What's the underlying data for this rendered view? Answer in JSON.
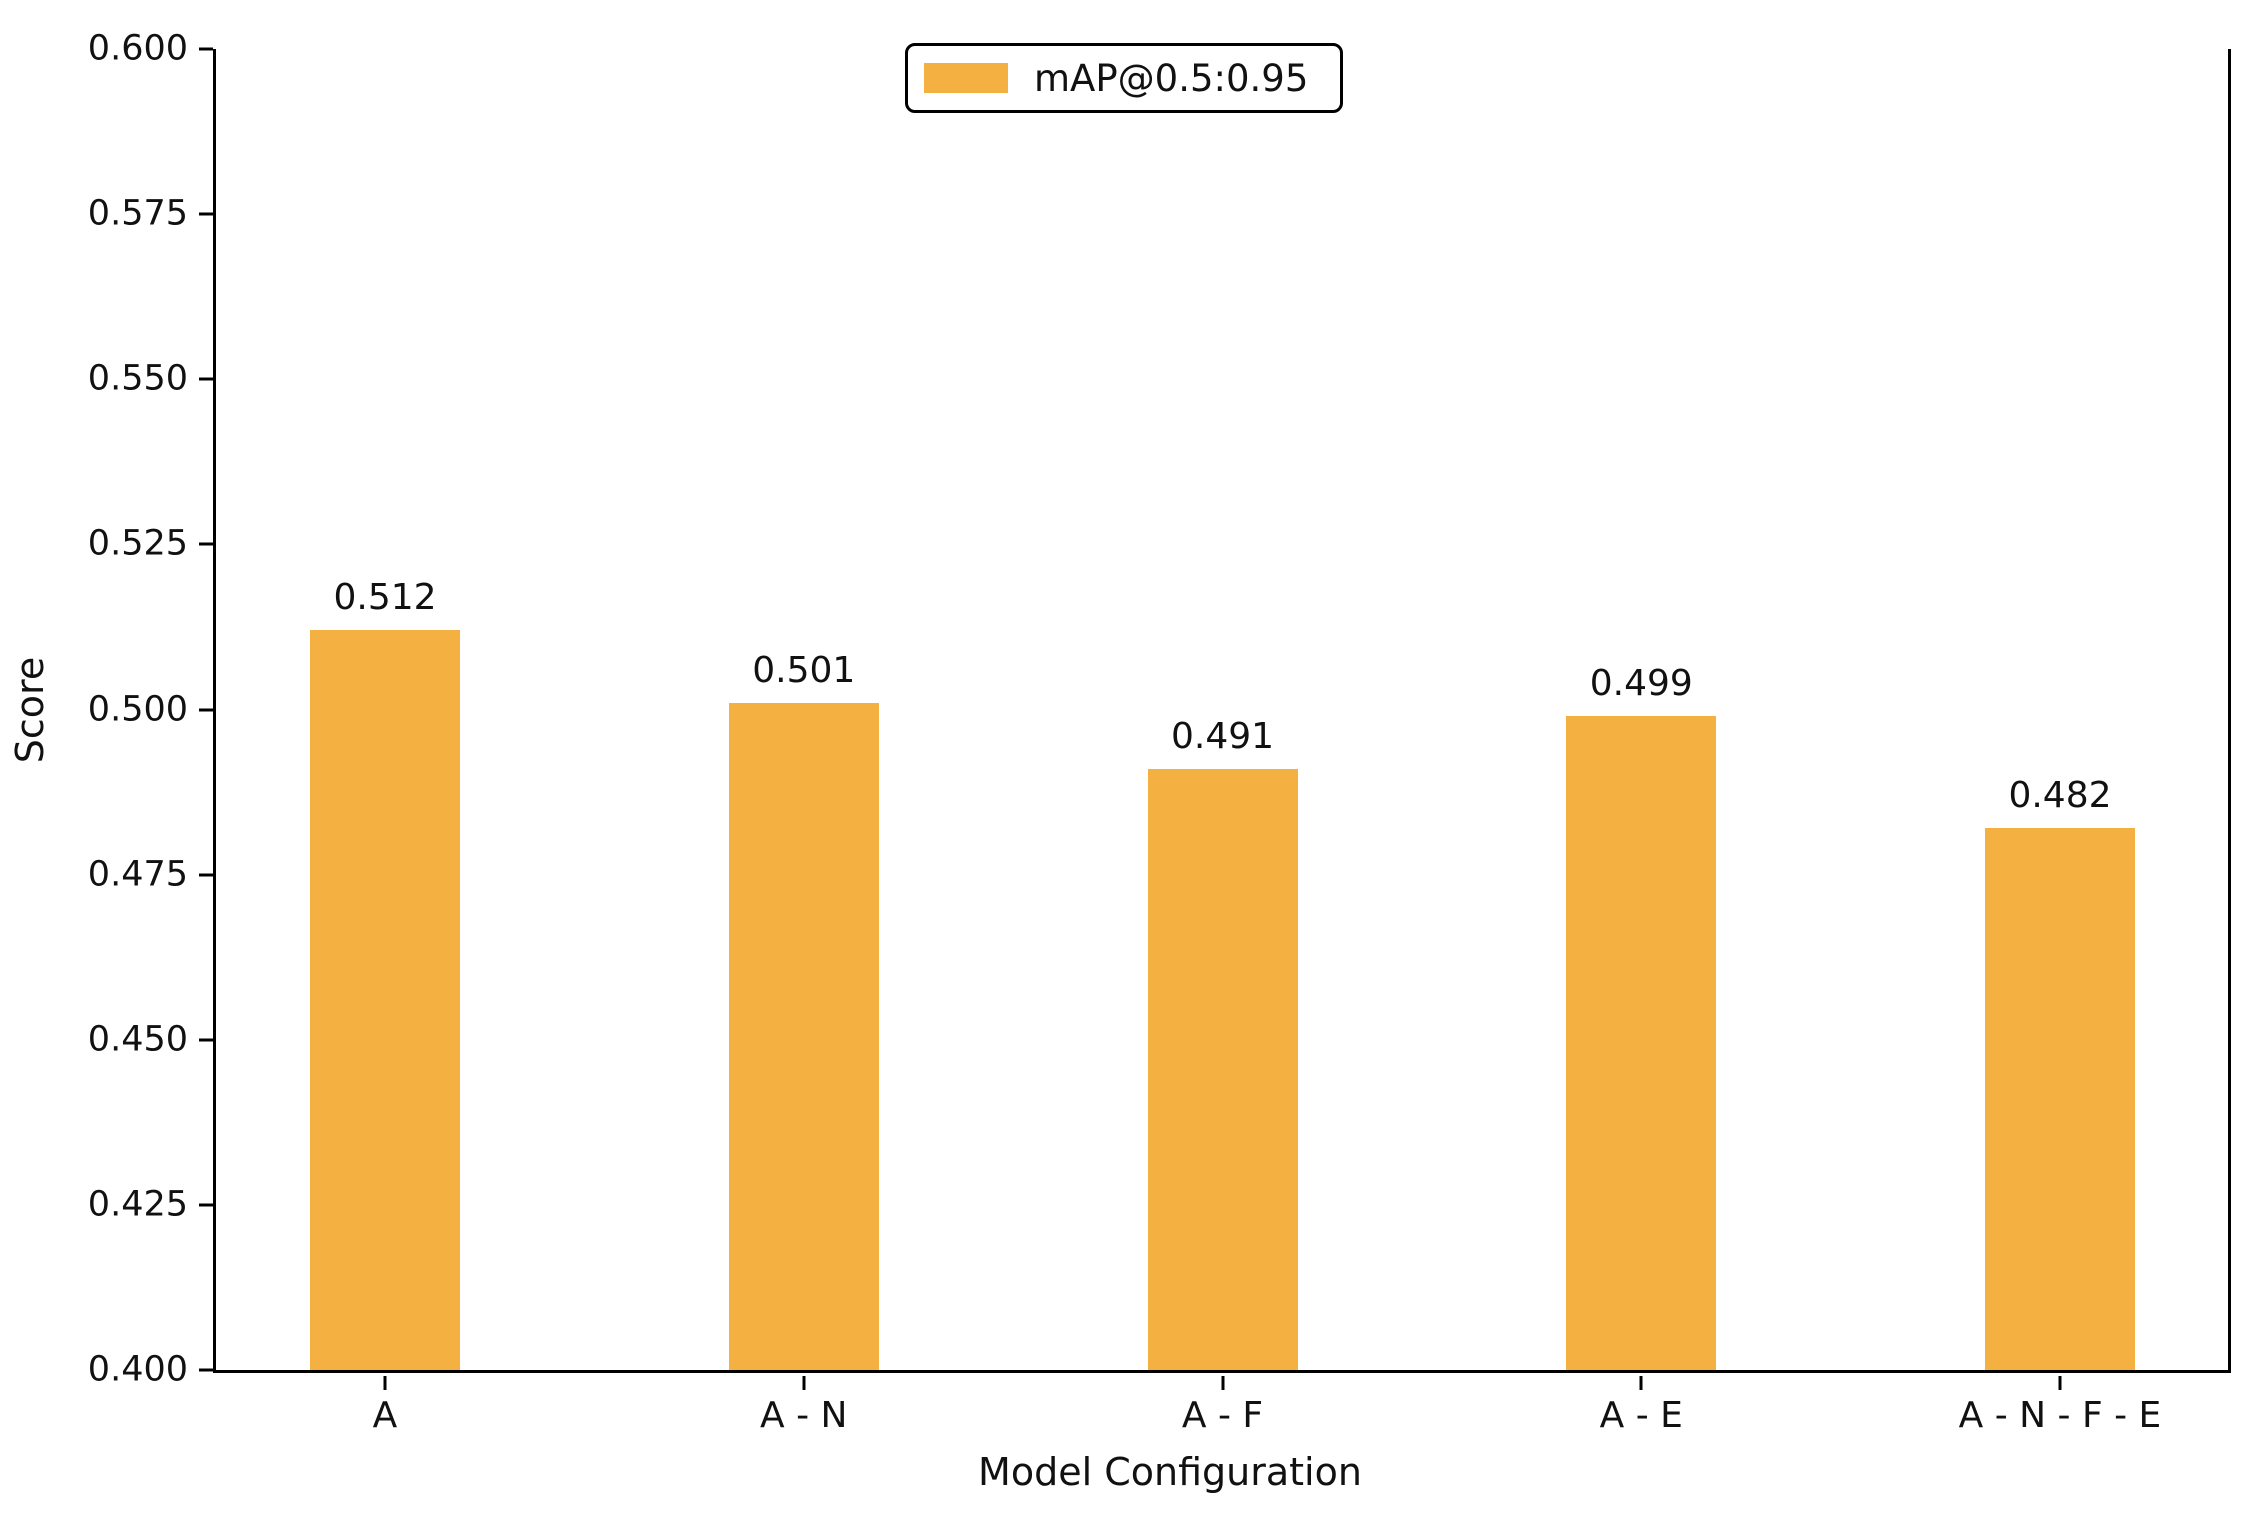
{
  "figure": {
    "background_color": "#ffffff",
    "text_color": "#111111",
    "accent_color": "#F5B042"
  },
  "chart_data": {
    "type": "bar",
    "title": "",
    "xlabel": "Model Configuration",
    "ylabel": "Score",
    "categories": [
      "A",
      "A - N",
      "A - F",
      "A - E",
      "A - N - F - E"
    ],
    "series": [
      {
        "name": "mAP@0.5:0.95",
        "values": [
          0.512,
          0.501,
          0.491,
          0.499,
          0.482
        ]
      }
    ],
    "value_labels": [
      "0.512",
      "0.501",
      "0.491",
      "0.499",
      "0.482"
    ],
    "ylim": [
      0.4,
      0.6
    ],
    "ytick_labels": [
      "0.600",
      "0.575",
      "0.550",
      "0.525",
      "0.500",
      "0.475",
      "0.450",
      "0.425",
      "0.400"
    ],
    "bar_color": "#F5B042",
    "grid": false,
    "legend": {
      "label": "mAP@0.5:0.95",
      "position": "upper center",
      "swatch_color": "#F5B042"
    },
    "spines": {
      "top": false,
      "right": true,
      "left": true,
      "bottom": true
    }
  }
}
